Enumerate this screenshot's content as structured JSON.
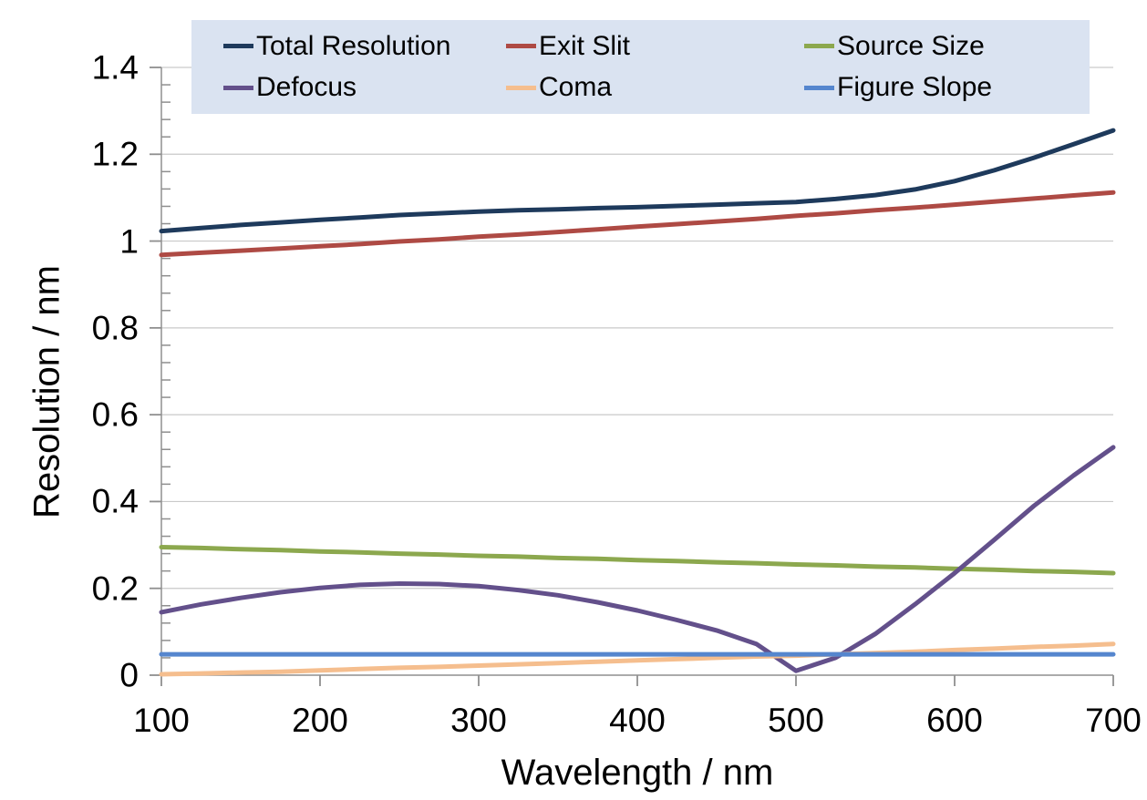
{
  "chart_data": {
    "type": "line",
    "title": "",
    "xlabel": "Wavelength / nm",
    "ylabel": "Resolution / nm",
    "xlim": [
      100,
      700
    ],
    "ylim": [
      0,
      1.4
    ],
    "x_ticks": [
      100,
      200,
      300,
      400,
      500,
      600,
      700
    ],
    "y_ticks": [
      0,
      0.2,
      0.4,
      0.6,
      0.8,
      1,
      1.2,
      1.4
    ],
    "y_tick_labels": [
      "0",
      "0.2",
      "0.4",
      "0.6",
      "0.8",
      "1",
      "1.2",
      "1.4"
    ],
    "y_minor_tick_step": 0.04,
    "grid": "horizontal-major",
    "legend_position": "top",
    "x": [
      100,
      125,
      150,
      175,
      200,
      225,
      250,
      275,
      300,
      325,
      350,
      375,
      400,
      425,
      450,
      475,
      500,
      525,
      550,
      575,
      600,
      625,
      650,
      675,
      700
    ],
    "series": [
      {
        "name": "Total Resolution",
        "color": "#1E3A5C",
        "values": [
          1.023,
          1.03,
          1.037,
          1.043,
          1.049,
          1.054,
          1.06,
          1.064,
          1.068,
          1.071,
          1.073,
          1.076,
          1.078,
          1.081,
          1.084,
          1.087,
          1.09,
          1.097,
          1.106,
          1.119,
          1.138,
          1.163,
          1.192,
          1.223,
          1.255
        ]
      },
      {
        "name": "Exit Slit",
        "color": "#AE4A44",
        "values": [
          0.968,
          0.973,
          0.978,
          0.983,
          0.988,
          0.993,
          0.999,
          1.004,
          1.01,
          1.015,
          1.021,
          1.027,
          1.033,
          1.039,
          1.045,
          1.051,
          1.058,
          1.064,
          1.071,
          1.077,
          1.084,
          1.091,
          1.098,
          1.105,
          1.112
        ]
      },
      {
        "name": "Source Size",
        "color": "#8CA84E",
        "values": [
          0.295,
          0.293,
          0.29,
          0.288,
          0.285,
          0.283,
          0.28,
          0.278,
          0.275,
          0.273,
          0.27,
          0.268,
          0.265,
          0.263,
          0.26,
          0.258,
          0.255,
          0.253,
          0.25,
          0.248,
          0.245,
          0.243,
          0.24,
          0.238,
          0.235
        ]
      },
      {
        "name": "Defocus",
        "color": "#63508B",
        "values": [
          0.145,
          0.163,
          0.178,
          0.191,
          0.201,
          0.208,
          0.211,
          0.21,
          0.205,
          0.196,
          0.184,
          0.168,
          0.149,
          0.127,
          0.103,
          0.072,
          0.01,
          0.04,
          0.095,
          0.163,
          0.235,
          0.312,
          0.39,
          0.46,
          0.525
        ]
      },
      {
        "name": "Coma",
        "color": "#F5BE8E",
        "values": [
          0.002,
          0.004,
          0.006,
          0.008,
          0.011,
          0.014,
          0.017,
          0.019,
          0.022,
          0.025,
          0.028,
          0.031,
          0.034,
          0.037,
          0.04,
          0.043,
          0.045,
          0.048,
          0.051,
          0.054,
          0.058,
          0.061,
          0.065,
          0.068,
          0.072
        ]
      },
      {
        "name": "Figure Slope",
        "color": "#5586CE",
        "values": [
          0.048,
          0.048,
          0.048,
          0.048,
          0.048,
          0.048,
          0.048,
          0.048,
          0.048,
          0.048,
          0.048,
          0.048,
          0.048,
          0.048,
          0.048,
          0.048,
          0.048,
          0.048,
          0.048,
          0.048,
          0.048,
          0.048,
          0.048,
          0.048,
          0.048
        ]
      }
    ],
    "colors": {
      "grid": "#C9C9C9",
      "axis": "#8F8F8F",
      "tick": "#8F8F8F",
      "legend_bg": "#DAE3F1",
      "text": "#000000"
    }
  }
}
